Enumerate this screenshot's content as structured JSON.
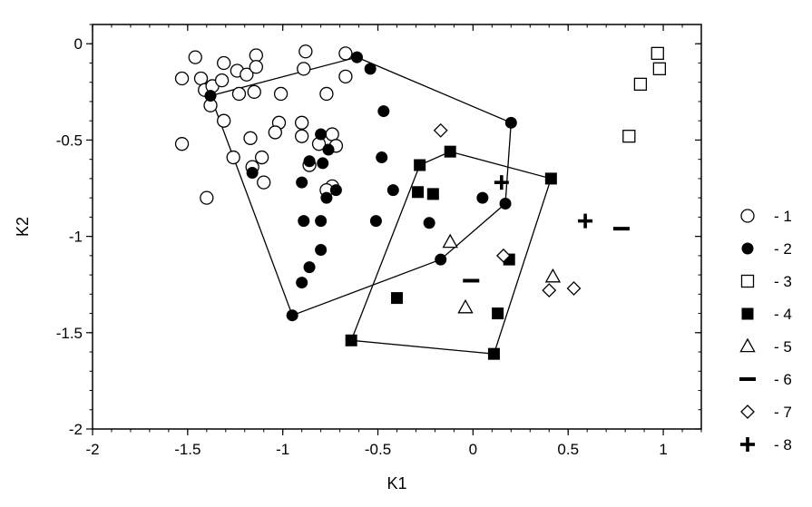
{
  "chart_data": {
    "type": "scatter",
    "xlabel": "K1",
    "ylabel": "K2",
    "xlim": [
      -2,
      1.2
    ],
    "ylim": [
      -2,
      0.1
    ],
    "x_ticks": [
      -2,
      -1.5,
      -1,
      -0.5,
      0,
      0.5,
      1
    ],
    "x_tick_labels": [
      "-2",
      "-1.5",
      "-1",
      "-0.5",
      "0",
      "0.5",
      "1"
    ],
    "y_ticks": [
      0,
      -0.5,
      -1,
      -1.5,
      -2
    ],
    "y_tick_labels": [
      "0",
      "-0.5",
      "-1",
      "-1.5",
      "-2"
    ],
    "grid": false,
    "legend_position": "right",
    "series": [
      {
        "name": "- 1",
        "marker": "circle-open",
        "points": [
          [
            -1.53,
            -0.18
          ],
          [
            -1.46,
            -0.07
          ],
          [
            -1.43,
            -0.18
          ],
          [
            -1.41,
            -0.24
          ],
          [
            -1.37,
            -0.22
          ],
          [
            -1.31,
            -0.1
          ],
          [
            -1.32,
            -0.19
          ],
          [
            -1.24,
            -0.14
          ],
          [
            -1.19,
            -0.16
          ],
          [
            -1.14,
            -0.06
          ],
          [
            -1.14,
            -0.12
          ],
          [
            -1.23,
            -0.26
          ],
          [
            -1.15,
            -0.25
          ],
          [
            -1.01,
            -0.26
          ],
          [
            -0.88,
            -0.04
          ],
          [
            -0.89,
            -0.13
          ],
          [
            -0.67,
            -0.05
          ],
          [
            -0.67,
            -0.17
          ],
          [
            -0.77,
            -0.26
          ],
          [
            -1.38,
            -0.32
          ],
          [
            -1.31,
            -0.4
          ],
          [
            -1.02,
            -0.41
          ],
          [
            -0.9,
            -0.41
          ],
          [
            -1.04,
            -0.46
          ],
          [
            -0.9,
            -0.48
          ],
          [
            -1.17,
            -0.49
          ],
          [
            -0.74,
            -0.47
          ],
          [
            -0.72,
            -0.53
          ],
          [
            -0.81,
            -0.52
          ],
          [
            -1.53,
            -0.52
          ],
          [
            -1.26,
            -0.59
          ],
          [
            -1.11,
            -0.59
          ],
          [
            -0.86,
            -0.63
          ],
          [
            -0.74,
            -0.74
          ],
          [
            -0.77,
            -0.76
          ],
          [
            -1.16,
            -0.64
          ],
          [
            -1.1,
            -0.72
          ],
          [
            -1.4,
            -0.8
          ]
        ]
      },
      {
        "name": "- 2",
        "marker": "circle-filled",
        "points": [
          [
            -1.38,
            -0.27
          ],
          [
            -0.61,
            -0.07
          ],
          [
            -0.54,
            -0.13
          ],
          [
            -0.47,
            -0.35
          ],
          [
            0.2,
            -0.41
          ],
          [
            -0.8,
            -0.47
          ],
          [
            -0.76,
            -0.55
          ],
          [
            -0.48,
            -0.59
          ],
          [
            -0.86,
            -0.61
          ],
          [
            -0.79,
            -0.62
          ],
          [
            -1.16,
            -0.67
          ],
          [
            -0.9,
            -0.72
          ],
          [
            -0.72,
            -0.76
          ],
          [
            -0.42,
            -0.76
          ],
          [
            -0.77,
            -0.8
          ],
          [
            0.05,
            -0.8
          ],
          [
            0.17,
            -0.83
          ],
          [
            -0.89,
            -0.92
          ],
          [
            -0.8,
            -0.92
          ],
          [
            -0.51,
            -0.92
          ],
          [
            -0.23,
            -0.93
          ],
          [
            -0.8,
            -1.07
          ],
          [
            -0.17,
            -1.12
          ],
          [
            -0.86,
            -1.16
          ],
          [
            -0.9,
            -1.24
          ],
          [
            -0.95,
            -1.41
          ]
        ]
      },
      {
        "name": "- 3",
        "marker": "square-open",
        "points": [
          [
            0.97,
            -0.05
          ],
          [
            0.98,
            -0.13
          ],
          [
            0.88,
            -0.21
          ],
          [
            0.82,
            -0.48
          ]
        ]
      },
      {
        "name": "- 4",
        "marker": "square-filled",
        "points": [
          [
            -0.28,
            -0.63
          ],
          [
            -0.12,
            -0.56
          ],
          [
            0.41,
            -0.7
          ],
          [
            -0.29,
            -0.77
          ],
          [
            -0.21,
            -0.78
          ],
          [
            0.19,
            -1.12
          ],
          [
            -0.4,
            -1.32
          ],
          [
            0.13,
            -1.4
          ],
          [
            -0.64,
            -1.54
          ],
          [
            0.11,
            -1.61
          ]
        ]
      },
      {
        "name": "- 5",
        "marker": "triangle-open",
        "points": [
          [
            -0.12,
            -1.03
          ],
          [
            0.42,
            -1.21
          ],
          [
            -0.04,
            -1.37
          ]
        ]
      },
      {
        "name": "- 6",
        "marker": "dash",
        "points": [
          [
            0.78,
            -0.96
          ],
          [
            -0.01,
            -1.23
          ]
        ]
      },
      {
        "name": "- 7",
        "marker": "diamond-open",
        "points": [
          [
            -0.17,
            -0.45
          ],
          [
            0.16,
            -1.1
          ],
          [
            0.4,
            -1.28
          ],
          [
            0.53,
            -1.27
          ]
        ]
      },
      {
        "name": "- 8",
        "marker": "plus",
        "points": [
          [
            0.15,
            -0.72
          ],
          [
            0.59,
            -0.92
          ]
        ]
      }
    ],
    "hulls": [
      {
        "series": "- 2",
        "points": [
          [
            -1.38,
            -0.27
          ],
          [
            -0.61,
            -0.07
          ],
          [
            0.2,
            -0.41
          ],
          [
            0.17,
            -0.83
          ],
          [
            -0.17,
            -1.12
          ],
          [
            -0.95,
            -1.41
          ]
        ]
      },
      {
        "series": "- 4",
        "points": [
          [
            -0.28,
            -0.63
          ],
          [
            -0.12,
            -0.56
          ],
          [
            0.41,
            -0.7
          ],
          [
            0.11,
            -1.61
          ],
          [
            -0.64,
            -1.54
          ]
        ]
      }
    ]
  }
}
